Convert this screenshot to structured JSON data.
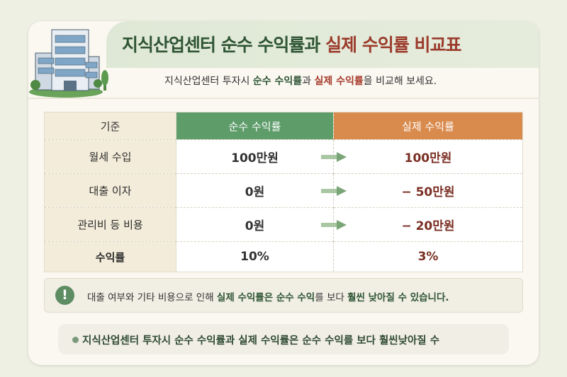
{
  "header": {
    "title_part1": "지식산업센터 순수 수익률과 ",
    "title_part2": "실제 수익률 비교표",
    "subtitle": {
      "a": "지식산업센터 투자시 ",
      "b": "순수 수익률",
      "c": "과 ",
      "d": "실제 수익률",
      "e": "을 비교해 보세요."
    }
  },
  "colors": {
    "green": "#5e9c6a",
    "orange": "#d98a4d",
    "title_green": "#2f5535",
    "title_red": "#9b3b2c"
  },
  "table": {
    "headers": [
      "기준",
      "순수 수익률",
      "실제 수익률"
    ],
    "rows": [
      {
        "label": "월세 수입",
        "pure": "100만원",
        "actual": "100만원"
      },
      {
        "label": "대출 이자",
        "pure": "0원",
        "actual": "− 50만원"
      },
      {
        "label": "관리비 등 비용",
        "pure": "0원",
        "actual": "− 20만원"
      },
      {
        "label": "수익률",
        "pure": "10%",
        "actual": "3%"
      }
    ]
  },
  "note": {
    "icon": "exclamation-icon",
    "a": "대출 여부와 기타 비용으로 인해 ",
    "b": "실제 수익률은 ",
    "c": "순수 수익",
    "d": "를 보다 ",
    "e": "훨씬 낮아질 수 있습니다."
  },
  "summary": "지식산업센터 투자시 순수 수익률과 실제 수익률은 순수 수익를 보다 훨씬낮아질 수"
}
